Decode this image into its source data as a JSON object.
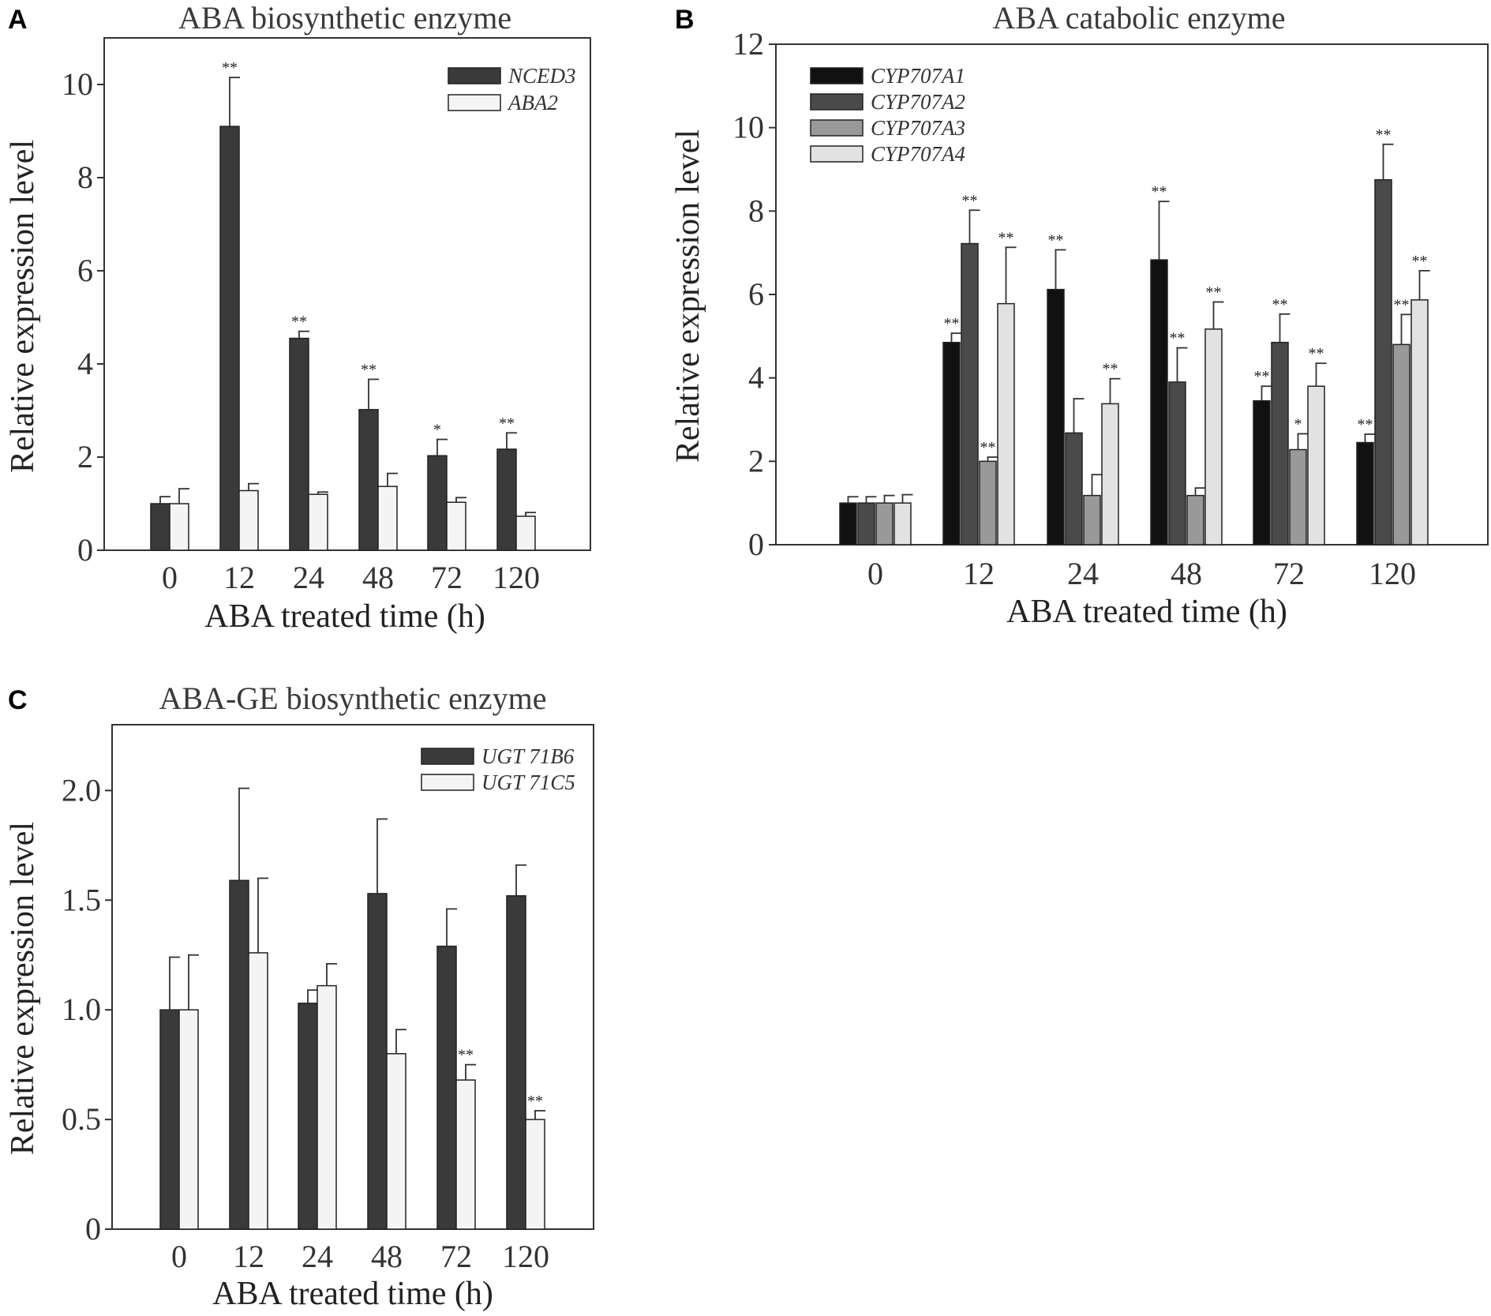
{
  "figure": {
    "panels": [
      "A",
      "B",
      "C"
    ]
  },
  "chart_data": [
    {
      "panel": "A",
      "type": "bar",
      "title": "ABA biosynthetic enzyme",
      "xlabel": "ABA treated time (h)",
      "ylabel": "Relative expression level",
      "ylim": [
        0,
        11
      ],
      "yticks": [
        "0",
        "2",
        "4",
        "6",
        "8",
        "10"
      ],
      "ytick_values": [
        0,
        2,
        4,
        6,
        8,
        10
      ],
      "categories": [
        "0",
        "12",
        "24",
        "48",
        "72",
        "120"
      ],
      "legend_position": "top-right",
      "series": [
        {
          "name": "NCED3",
          "color": "#3a3a3a",
          "values": [
            1.0,
            9.1,
            4.55,
            3.02,
            2.03,
            2.17
          ],
          "errors": [
            0.15,
            1.05,
            0.15,
            0.65,
            0.35,
            0.35
          ],
          "sig": [
            "",
            "**",
            "**",
            "**",
            "*",
            "**"
          ]
        },
        {
          "name": "ABA2",
          "color": "#f4f4f4",
          "values": [
            1.0,
            1.28,
            1.2,
            1.37,
            1.03,
            0.73
          ],
          "errors": [
            0.32,
            0.15,
            0.05,
            0.28,
            0.1,
            0.08
          ],
          "sig": [
            "",
            "",
            "",
            "",
            "",
            ""
          ]
        }
      ]
    },
    {
      "panel": "B",
      "type": "bar",
      "title": "ABA catabolic enzyme",
      "xlabel": "ABA treated time (h)",
      "ylabel": "Relative expression level",
      "ylim": [
        0,
        12
      ],
      "yticks": [
        "0",
        "2",
        "4",
        "6",
        "8",
        "10",
        "12"
      ],
      "ytick_values": [
        0,
        2,
        4,
        6,
        8,
        10,
        12
      ],
      "categories": [
        "0",
        "12",
        "24",
        "48",
        "72",
        "120"
      ],
      "legend_position": "top-left",
      "series": [
        {
          "name": "CYP707A1",
          "color": "#111111",
          "values": [
            1.0,
            4.85,
            6.12,
            6.83,
            3.45,
            2.45
          ],
          "errors": [
            0.15,
            0.22,
            0.95,
            1.4,
            0.35,
            0.2
          ],
          "sig": [
            "",
            "**",
            "**",
            "**",
            "**",
            "**"
          ]
        },
        {
          "name": "CYP707A2",
          "color": "#4a4a4a",
          "values": [
            1.0,
            7.22,
            2.68,
            3.9,
            4.85,
            8.75
          ],
          "errors": [
            0.15,
            0.8,
            0.82,
            0.82,
            0.68,
            0.85
          ],
          "sig": [
            "",
            "**",
            "",
            "**",
            "**",
            "**"
          ]
        },
        {
          "name": "CYP707A3",
          "color": "#999999",
          "values": [
            1.0,
            2.0,
            1.18,
            1.18,
            2.28,
            4.8
          ],
          "errors": [
            0.18,
            0.1,
            0.5,
            0.18,
            0.38,
            0.72
          ],
          "sig": [
            "",
            "**",
            "",
            "",
            "*",
            "**"
          ]
        },
        {
          "name": "CYP707A4",
          "color": "#e2e2e2",
          "values": [
            1.0,
            5.78,
            3.38,
            5.17,
            3.8,
            5.87
          ],
          "errors": [
            0.2,
            1.35,
            0.6,
            0.65,
            0.55,
            0.7
          ],
          "sig": [
            "",
            "**",
            "**",
            "**",
            "**",
            "**"
          ]
        }
      ]
    },
    {
      "panel": "C",
      "type": "bar",
      "title": "ABA-GE biosynthetic enzyme",
      "xlabel": "ABA treated time (h)",
      "ylabel": "Relative expression level",
      "ylim": [
        0,
        2.3
      ],
      "yticks": [
        "0",
        "0.5",
        "1.0",
        "1.5",
        "2.0"
      ],
      "ytick_values": [
        0,
        0.5,
        1.0,
        1.5,
        2.0
      ],
      "categories": [
        "0",
        "12",
        "24",
        "48",
        "72",
        "120"
      ],
      "legend_position": "top-right",
      "series": [
        {
          "name": "UGT 71B6",
          "color": "#3a3a3a",
          "values": [
            1.0,
            1.59,
            1.03,
            1.53,
            1.29,
            1.52
          ],
          "errors": [
            0.24,
            0.42,
            0.06,
            0.34,
            0.17,
            0.14
          ],
          "sig": [
            "",
            "",
            "",
            "",
            "",
            ""
          ]
        },
        {
          "name": "UGT 71C5",
          "color": "#f4f4f4",
          "values": [
            1.0,
            1.26,
            1.11,
            0.8,
            0.68,
            0.5
          ],
          "errors": [
            0.25,
            0.34,
            0.1,
            0.11,
            0.07,
            0.04
          ],
          "sig": [
            "",
            "",
            "",
            "",
            "**",
            "**"
          ]
        }
      ]
    }
  ]
}
